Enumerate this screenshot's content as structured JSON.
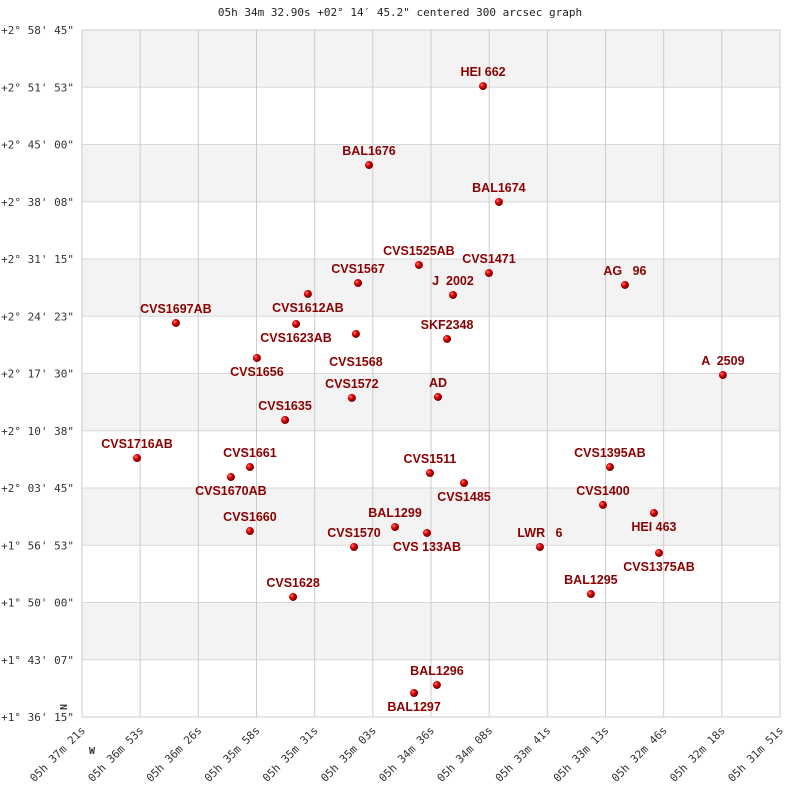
{
  "chart_data": {
    "type": "scatter",
    "title": "05h 34m 32.90s +02° 14′ 45.2\" centered 300 arcsec graph",
    "x_ticks": [
      "05h 37m 21s",
      "05h 36m 53s",
      "05h 36m 26s",
      "05h 35m 58s",
      "05h 35m 31s",
      "05h 35m 03s",
      "05h 34m 36s",
      "05h 34m 08s",
      "05h 33m 41s",
      "05h 33m 13s",
      "05h 32m 46s",
      "05h 32m 18s",
      "05h 31m 51s"
    ],
    "y_ticks": [
      "+2° 58' 45\"",
      "+2° 51' 53\"",
      "+2° 45' 00\"",
      "+2° 38' 08\"",
      "+2° 31' 15\"",
      "+2° 24' 23\"",
      "+2° 17' 30\"",
      "+2° 10' 38\"",
      "+2° 03' 45\"",
      "+1° 56' 53\"",
      "+1° 50' 00\"",
      "+1° 43' 07\"",
      "+1° 36' 15\""
    ],
    "xlim": [
      "05h 37m 21s",
      "05h 31m 51s"
    ],
    "ylim": [
      "+1° 36' 15\"",
      "+2° 58' 45\""
    ],
    "x_reversed": true,
    "grid": true,
    "banded_background": true,
    "compass": {
      "north": "N",
      "west": "W"
    },
    "point_color": "#cc0000",
    "label_color": "#8b0000",
    "points": [
      {
        "name": "HEI 662",
        "ra": "05h 34m 11.4s",
        "dec": "+2° 52' 01\""
      },
      {
        "name": "BAL1676",
        "ra": "05h 35m 05.3s",
        "dec": "+2° 42' 32\""
      },
      {
        "name": "BAL1674",
        "ra": "05h 34m 03.9s",
        "dec": "+2° 38' 06\""
      },
      {
        "name": "CVS1525AB",
        "ra": "05h 34m 41.7s",
        "dec": "+2° 30' 32\""
      },
      {
        "name": "CVS1471",
        "ra": "05h 34m 08.6s",
        "dec": "+2° 29' 34\""
      },
      {
        "name": "CVS1567",
        "ra": "05h 35m 10.5s",
        "dec": "+2° 28' 22\""
      },
      {
        "name": "CVS1612AB",
        "ra": "05h 35m 34.2s",
        "dec": "+2° 27' 03\""
      },
      {
        "name": "J  2002",
        "ra": "05h 34m 25.6s",
        "dec": "+2° 26' 56\""
      },
      {
        "name": "AG   96",
        "ra": "05h 33m 04.3s",
        "dec": "+2° 28' 08\""
      },
      {
        "name": "CVS1697AB",
        "ra": "05h 36m 36.6s",
        "dec": "+2° 23' 34\""
      },
      {
        "name": "CVS1623AB",
        "ra": "05h 35m 39.8s",
        "dec": "+2° 23' 27\""
      },
      {
        "name": "CVS1568",
        "ra": "05h 35m 11.5s",
        "dec": "+2° 22' 15\""
      },
      {
        "name": "SKF2348",
        "ra": "05h 34m 28.4s",
        "dec": "+2° 21' 39\""
      },
      {
        "name": "CVS1656",
        "ra": "05h 35m 58.3s",
        "dec": "+2° 19' 22\""
      },
      {
        "name": "A  2509",
        "ra": "05h 32m 18.0s",
        "dec": "+2° 17' 19\""
      },
      {
        "name": "CVS1572",
        "ra": "05h 35m 13.4s",
        "dec": "+2° 14' 34\""
      },
      {
        "name": "AD",
        "ra": "05h 34m 32.7s",
        "dec": "+2° 14' 41\""
      },
      {
        "name": "CVS1635",
        "ra": "05h 35m 45.0s",
        "dec": "+2° 11' 55\""
      },
      {
        "name": "CVS1716AB",
        "ra": "05h 36m 55.0s",
        "dec": "+2° 07' 21\""
      },
      {
        "name": "CVS1661",
        "ra": "05h 36m 01.6s",
        "dec": "+2° 06' 16\""
      },
      {
        "name": "CVS1670AB",
        "ra": "05h 36m 10.6s",
        "dec": "+2° 05' 04\""
      },
      {
        "name": "CVS1511",
        "ra": "05h 34m 36.5s",
        "dec": "+2° 05' 33\""
      },
      {
        "name": "CVS1485",
        "ra": "05h 34m 20.4s",
        "dec": "+2° 04' 21\""
      },
      {
        "name": "CVS1395AB",
        "ra": "05h 33m 11.4s",
        "dec": "+2° 06' 16\""
      },
      {
        "name": "CVS1400",
        "ra": "05h 33m 14.7s",
        "dec": "+2° 01' 43\""
      },
      {
        "name": "HEI 463",
        "ra": "05h 32m 50.6s",
        "dec": "+2° 00' 45\""
      },
      {
        "name": "CVS1660",
        "ra": "05h 36m 01.6s",
        "dec": "+1° 58' 35\""
      },
      {
        "name": "BAL1299",
        "ra": "05h 34m 53.0s",
        "dec": "+1° 59' 04\""
      },
      {
        "name": "CVS 133AB",
        "ra": "05h 34m 37.9s",
        "dec": "+1° 58' 21\""
      },
      {
        "name": "CVS1570",
        "ra": "05h 35m 12.4s",
        "dec": "+1° 56' 40\""
      },
      {
        "name": "LWR   6",
        "ra": "05h 33m 44.5s",
        "dec": "+1° 56' 40\""
      },
      {
        "name": "CVS1375AB",
        "ra": "05h 32m 48.2s",
        "dec": "+1° 55' 57\""
      },
      {
        "name": "BAL1295",
        "ra": "05h 33m 20.4s",
        "dec": "+1° 51' 01\""
      },
      {
        "name": "CVS1628",
        "ra": "05h 35m 41.2s",
        "dec": "+1° 50' 40\""
      },
      {
        "name": "BAL1296",
        "ra": "05h 34m 33.2s",
        "dec": "+1° 40' 06\""
      },
      {
        "name": "BAL1297",
        "ra": "05h 34m 44.0s",
        "dec": "+1° 39' 08\""
      }
    ]
  }
}
